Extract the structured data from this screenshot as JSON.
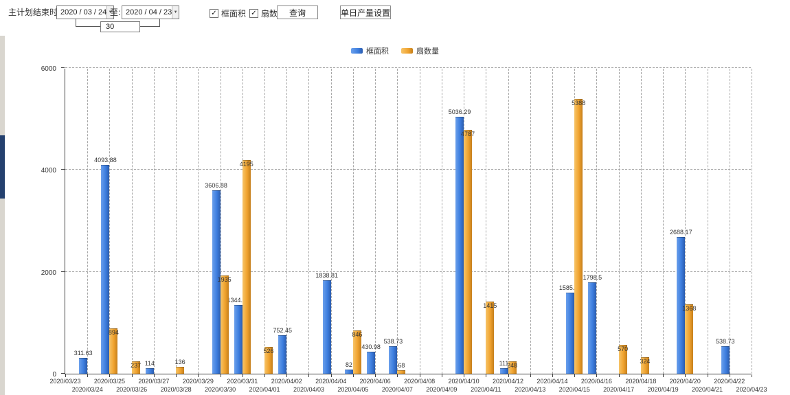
{
  "toolbar": {
    "label_main": "主计划结束时间:",
    "date_from": "2020 / 03 / 24",
    "label_to": "至:",
    "date_to": "2020 / 04 / 23",
    "days_value": "30",
    "checkboxes": [
      {
        "label": "框面积",
        "checked": true
      },
      {
        "label": "扇数量",
        "checked": true
      }
    ],
    "query_button": "查询",
    "daily_output_button": "单日产量设置"
  },
  "icons": {
    "combo_arrow": "▼",
    "checkbox_check": "✓"
  },
  "legend": {
    "position": "top-center"
  },
  "chart_data": {
    "type": "bar",
    "title": "",
    "xlabel": "",
    "ylabel": "",
    "ylim": [
      0,
      6000
    ],
    "yticks": [
      0,
      2000,
      4000,
      6000
    ],
    "grid": "dashed",
    "categories": [
      "2020/03/23",
      "2020/03/24",
      "2020/03/25",
      "2020/03/26",
      "2020/03/27",
      "2020/03/28",
      "2020/03/29",
      "2020/03/30",
      "2020/03/31",
      "2020/04/01",
      "2020/04/02",
      "2020/04/03",
      "2020/04/04",
      "2020/04/05",
      "2020/04/06",
      "2020/04/07",
      "2020/04/08",
      "2020/04/09",
      "2020/04/10",
      "2020/04/11",
      "2020/04/12",
      "2020/04/13",
      "2020/04/14",
      "2020/04/15",
      "2020/04/16",
      "2020/04/17",
      "2020/04/18",
      "2020/04/19",
      "2020/04/20",
      "2020/04/21",
      "2020/04/22",
      "2020/04/23"
    ],
    "series": [
      {
        "name": "框面积",
        "color": "#3d7edf",
        "values": [
          0,
          311.63,
          4093.88,
          0,
          114,
          0,
          0,
          3606.88,
          1344.95,
          0,
          752.45,
          0,
          1838.81,
          82,
          430.98,
          538.73,
          0,
          0,
          5036.29,
          0,
          111,
          0,
          0,
          1585.96,
          1798.5,
          0,
          0,
          0,
          2688.17,
          0,
          538.73,
          0
        ]
      },
      {
        "name": "扇数量",
        "color": "#f0a32f",
        "values": [
          0,
          0,
          894,
          237,
          0,
          136,
          0,
          1935,
          4195,
          526,
          0,
          0,
          0,
          846,
          0,
          68,
          0,
          0,
          4787,
          1415,
          248,
          0,
          0,
          5388,
          0,
          570,
          324,
          0,
          1368,
          0,
          0,
          0
        ]
      }
    ]
  }
}
